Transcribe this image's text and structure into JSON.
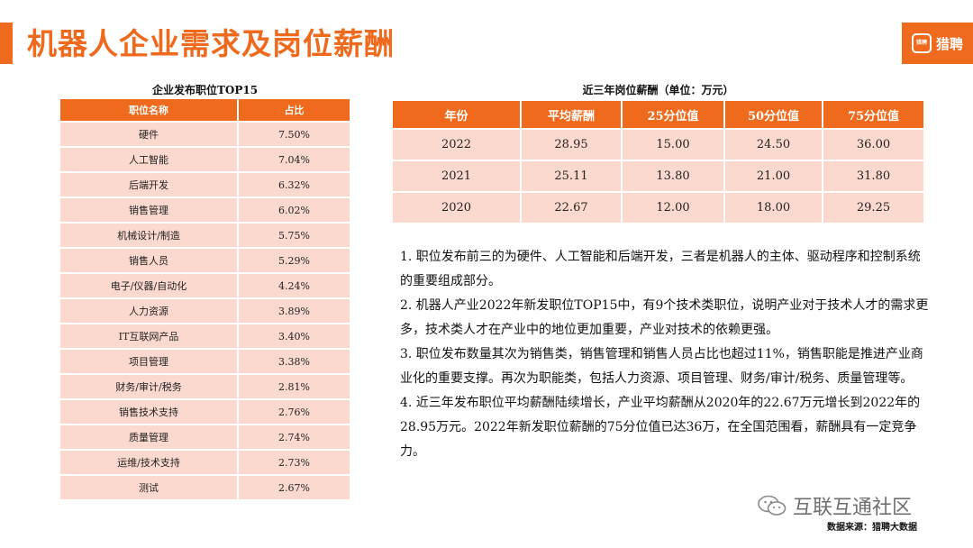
{
  "header": {
    "title": "机器人企业需求及岗位薪酬",
    "logo_badge": "猎聘",
    "logo_text": "猎聘"
  },
  "jobs_table": {
    "caption": "企业发布职位TOP15",
    "columns": [
      "职位名称",
      "占比"
    ],
    "rows": [
      [
        "硬件",
        "7.50%"
      ],
      [
        "人工智能",
        "7.04%"
      ],
      [
        "后端开发",
        "6.32%"
      ],
      [
        "销售管理",
        "6.02%"
      ],
      [
        "机械设计/制造",
        "5.75%"
      ],
      [
        "销售人员",
        "5.29%"
      ],
      [
        "电子/仪器/自动化",
        "4.24%"
      ],
      [
        "人力资源",
        "3.89%"
      ],
      [
        "IT互联网产品",
        "3.40%"
      ],
      [
        "项目管理",
        "3.38%"
      ],
      [
        "财务/审计/税务",
        "2.81%"
      ],
      [
        "销售技术支持",
        "2.76%"
      ],
      [
        "质量管理",
        "2.74%"
      ],
      [
        "运维/技术支持",
        "2.73%"
      ],
      [
        "测试",
        "2.67%"
      ]
    ]
  },
  "salary_table": {
    "caption": "近三年岗位薪酬（单位：万元）",
    "columns": [
      "年份",
      "平均薪酬",
      "25分位值",
      "50分位值",
      "75分位值"
    ],
    "rows": [
      [
        "2022",
        "28.95",
        "15.00",
        "24.50",
        "36.00"
      ],
      [
        "2021",
        "25.11",
        "13.80",
        "21.00",
        "31.80"
      ],
      [
        "2020",
        "22.67",
        "12.00",
        "18.00",
        "29.25"
      ]
    ]
  },
  "notes": [
    "1. 职位发布前三的为硬件、人工智能和后端开发，三者是机器人的主体、驱动程序和控制系统的重要组成部分。",
    "2. 机器人产业2022年新发职位TOP15中，有9个技术类职位，说明产业对于技术人才的需求更多，技术类人才在产业中的地位更加重要，产业对技术的依赖更强。",
    "3. 职位发布数量其次为销售类，销售管理和销售人员占比也超过11%，销售职能是推进产业商业化的重要支撑。再次为职能类，包括人力资源、项目管理、财务/审计/税务、质量管理等。",
    "4. 近三年发布职位平均薪酬陆续增长，产业平均薪酬从2020年的22.67万元增长到2022年的28.95万元。2022年新发职位薪酬的75分位值已达36万，在全国范围看，薪酬具有一定竞争力。"
  ],
  "footer": {
    "watermark": "互联互通社区",
    "source": "数据来源：猎聘大数据"
  },
  "colors": {
    "accent": "#ef6a1c",
    "row_fill": "#fbd9cf"
  }
}
